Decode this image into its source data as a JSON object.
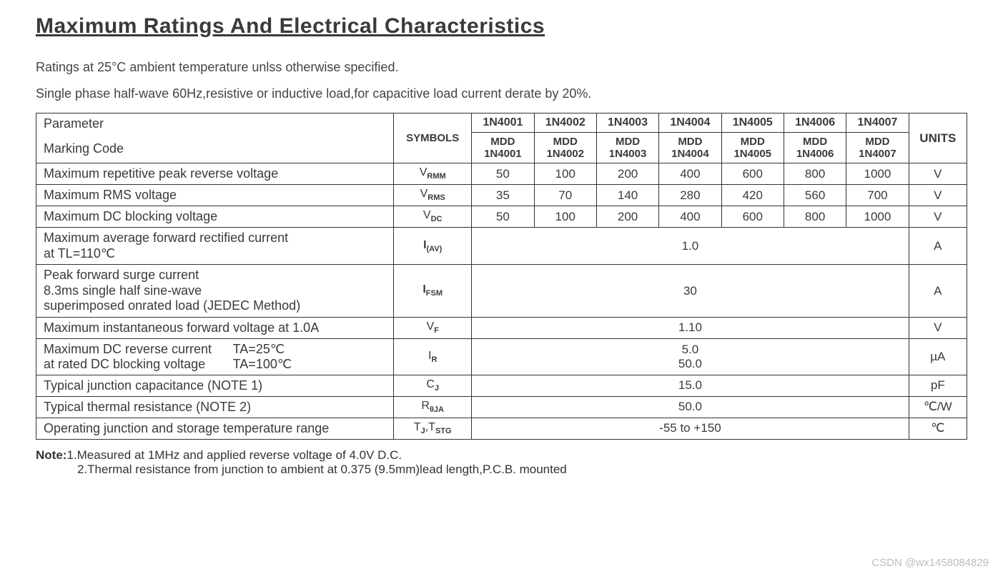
{
  "title": "Maximum Ratings And Electrical Characteristics",
  "subtitle1": "Ratings at 25°C ambient temperature unlss otherwise specified.",
  "subtitle2": "Single phase half-wave 60Hz,resistive or inductive load,for capacitive load current derate by 20%.",
  "header": {
    "parameter": "Parameter",
    "marking_code": "Marking Code",
    "symbols": "SYMBOLS",
    "units": "UNITS",
    "parts": [
      "1N4001",
      "1N4002",
      "1N4003",
      "1N4004",
      "1N4005",
      "1N4006",
      "1N4007"
    ],
    "marking_prefix": "MDD"
  },
  "rows": {
    "vrmm": {
      "param": "Maximum repetitive peak reverse voltage",
      "sym_main": "V",
      "sym_sub": "RMM",
      "cells": [
        "50",
        "100",
        "200",
        "400",
        "600",
        "800",
        "1000"
      ],
      "unit": "V"
    },
    "vrms": {
      "param": "Maximum RMS voltage",
      "sym_main": "V",
      "sym_sub": "RMS",
      "cells": [
        "35",
        "70",
        "140",
        "280",
        "420",
        "560",
        "700"
      ],
      "unit": "V"
    },
    "vdc": {
      "param": "Maximum DC blocking voltage",
      "sym_main": "V",
      "sym_sub": "DC",
      "cells": [
        "50",
        "100",
        "200",
        "400",
        "600",
        "800",
        "1000"
      ],
      "unit": "V"
    },
    "iav": {
      "param_l1": "Maximum average forward rectified current",
      "param_l2": "at TL=110℃",
      "sym_main": "I",
      "sym_sub": "(AV)",
      "span_val": "1.0",
      "unit": "A"
    },
    "ifsm": {
      "param_l1": "Peak forward surge current",
      "param_l2": "8.3ms single half sine-wave",
      "param_l3": "superimposed onrated load (JEDEC Method)",
      "sym_main": "I",
      "sym_sub": "FSM",
      "span_val": "30",
      "unit": "A"
    },
    "vf": {
      "param": "Maximum instantaneous forward voltage at 1.0A",
      "sym_main": "V",
      "sym_sub": "F",
      "span_val": "1.10",
      "unit": "V"
    },
    "ir": {
      "param_l1a": "Maximum DC reverse current",
      "param_l1b": "TA=25℃",
      "param_l2a": "at rated DC blocking voltage",
      "param_l2b": "TA=100℃",
      "sym_main": "I",
      "sym_sub": "R",
      "span_val_l1": "5.0",
      "span_val_l2": "50.0",
      "unit": "µA"
    },
    "cj": {
      "param": "Typical junction capacitance (NOTE 1)",
      "sym_main": "C",
      "sym_sub": "J",
      "span_val": "15.0",
      "unit": "pF"
    },
    "rth": {
      "param": "Typical thermal resistance (NOTE 2)",
      "sym_main": "R",
      "sym_sub": "θJA",
      "span_val": "50.0",
      "unit": "℃/W"
    },
    "tj": {
      "param": "Operating junction and storage temperature range",
      "sym_main": "T",
      "sym_sub": "J",
      "sym_main2": "T",
      "sym_sub2": "STG",
      "span_val": "-55 to +150",
      "unit": "℃"
    }
  },
  "notes": {
    "label": "Note:",
    "n1": "1.Measured at 1MHz and applied reverse voltage of 4.0V D.C.",
    "n2": "2.Thermal resistance from junction to ambient  at 0.375  (9.5mm)lead length,P.C.B. mounted"
  },
  "watermark": "CSDN @wx1458084829",
  "style": {
    "border_color": "#333333",
    "font": "Arial",
    "text_color": "#3a3a3a"
  }
}
